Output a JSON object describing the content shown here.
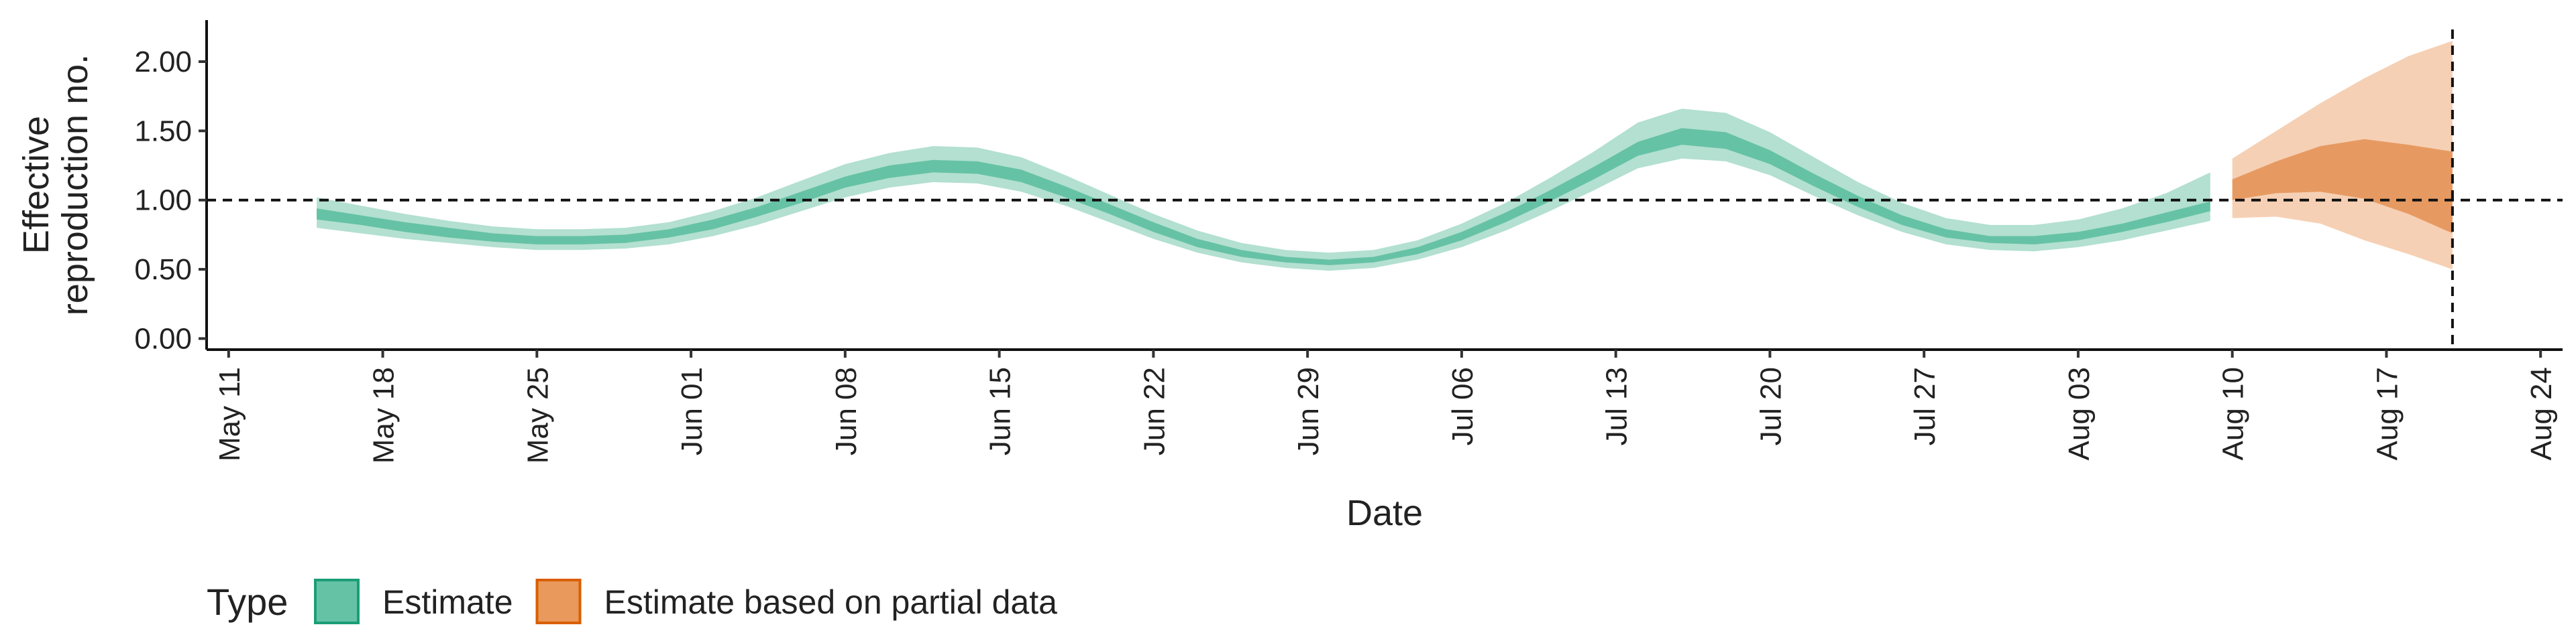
{
  "chart_data": {
    "type": "area",
    "title": "",
    "xlabel": "Date",
    "ylabel": "Effective reproduction no.",
    "ylabel_lines": [
      "Effective",
      "reproduction no."
    ],
    "ylim": [
      -0.08,
      2.3
    ],
    "xlim": [
      "2020-05-10",
      "2020-08-25"
    ],
    "y_ticks": [
      0,
      0.5,
      1,
      1.5,
      2
    ],
    "y_tick_labels": [
      "0.00",
      "0.50",
      "1.00",
      "1.50",
      "2.00"
    ],
    "x_ticks": [
      "2020-05-11",
      "2020-05-18",
      "2020-05-25",
      "2020-06-01",
      "2020-06-08",
      "2020-06-15",
      "2020-06-22",
      "2020-06-29",
      "2020-07-06",
      "2020-07-13",
      "2020-07-20",
      "2020-07-27",
      "2020-08-03",
      "2020-08-10",
      "2020-08-17",
      "2020-08-24"
    ],
    "x_tick_labels": [
      "May 11",
      "May 18",
      "May 25",
      "Jun 01",
      "Jun 08",
      "Jun 15",
      "Jun 22",
      "Jun 29",
      "Jul 06",
      "Jul 13",
      "Jul 20",
      "Jul 27",
      "Aug 03",
      "Aug 10",
      "Aug 17",
      "Aug 24"
    ],
    "reference_line_y": 1,
    "reference_line_x": "2020-08-20",
    "grid": false,
    "legend": {
      "position": "bottom-left",
      "title": "Type",
      "entries": [
        {
          "label": "Estimate",
          "fill": "#66c2a5",
          "stroke": "#1b9e77"
        },
        {
          "label": "Estimate based on partial data",
          "fill": "#e9995c",
          "stroke": "#d95f02"
        }
      ]
    },
    "colors": {
      "estimate_outer": "#b3e0d0",
      "estimate_inner": "#66c2a5",
      "partial_outer": "#f6d0b4",
      "partial_inner": "#e69a62"
    },
    "series": [
      {
        "name": "Estimate",
        "x": [
          "2020-05-15",
          "2020-05-17",
          "2020-05-19",
          "2020-05-21",
          "2020-05-23",
          "2020-05-25",
          "2020-05-27",
          "2020-05-29",
          "2020-05-31",
          "2020-06-02",
          "2020-06-04",
          "2020-06-06",
          "2020-06-08",
          "2020-06-10",
          "2020-06-12",
          "2020-06-14",
          "2020-06-16",
          "2020-06-18",
          "2020-06-20",
          "2020-06-22",
          "2020-06-24",
          "2020-06-26",
          "2020-06-28",
          "2020-06-30",
          "2020-07-02",
          "2020-07-04",
          "2020-07-06",
          "2020-07-08",
          "2020-07-10",
          "2020-07-12",
          "2020-07-14",
          "2020-07-16",
          "2020-07-18",
          "2020-07-20",
          "2020-07-22",
          "2020-07-24",
          "2020-07-26",
          "2020-07-28",
          "2020-07-30",
          "2020-08-01",
          "2020-08-03",
          "2020-08-05",
          "2020-08-07",
          "2020-08-09"
        ],
        "lower_90": [
          0.8,
          0.76,
          0.72,
          0.69,
          0.66,
          0.64,
          0.64,
          0.65,
          0.68,
          0.74,
          0.82,
          0.92,
          1.02,
          1.09,
          1.13,
          1.12,
          1.06,
          0.96,
          0.84,
          0.72,
          0.62,
          0.55,
          0.51,
          0.49,
          0.51,
          0.57,
          0.66,
          0.78,
          0.92,
          1.07,
          1.23,
          1.3,
          1.28,
          1.18,
          1.03,
          0.89,
          0.77,
          0.68,
          0.64,
          0.63,
          0.66,
          0.71,
          0.78,
          0.85
        ],
        "lower_50": [
          0.86,
          0.82,
          0.77,
          0.73,
          0.7,
          0.68,
          0.68,
          0.69,
          0.73,
          0.79,
          0.88,
          0.98,
          1.09,
          1.16,
          1.2,
          1.19,
          1.13,
          1.02,
          0.9,
          0.77,
          0.66,
          0.59,
          0.55,
          0.53,
          0.55,
          0.61,
          0.71,
          0.84,
          0.99,
          1.15,
          1.32,
          1.4,
          1.37,
          1.26,
          1.1,
          0.95,
          0.82,
          0.73,
          0.69,
          0.68,
          0.71,
          0.77,
          0.84,
          0.92
        ],
        "upper_50": [
          0.94,
          0.89,
          0.84,
          0.8,
          0.76,
          0.74,
          0.74,
          0.75,
          0.79,
          0.86,
          0.95,
          1.06,
          1.17,
          1.25,
          1.29,
          1.28,
          1.22,
          1.1,
          0.97,
          0.84,
          0.72,
          0.64,
          0.59,
          0.57,
          0.59,
          0.66,
          0.77,
          0.91,
          1.07,
          1.24,
          1.42,
          1.52,
          1.49,
          1.36,
          1.19,
          1.03,
          0.89,
          0.79,
          0.74,
          0.74,
          0.77,
          0.83,
          0.91,
          0.99
        ],
        "upper_90": [
          1.02,
          0.96,
          0.9,
          0.85,
          0.81,
          0.79,
          0.79,
          0.8,
          0.84,
          0.92,
          1.02,
          1.14,
          1.26,
          1.34,
          1.39,
          1.38,
          1.31,
          1.18,
          1.04,
          0.9,
          0.78,
          0.69,
          0.64,
          0.62,
          0.64,
          0.71,
          0.83,
          0.98,
          1.16,
          1.35,
          1.56,
          1.66,
          1.63,
          1.49,
          1.31,
          1.13,
          0.98,
          0.87,
          0.82,
          0.82,
          0.86,
          0.94,
          1.05,
          1.2
        ]
      },
      {
        "name": "Estimate based on partial data",
        "x": [
          "2020-08-10",
          "2020-08-12",
          "2020-08-14",
          "2020-08-16",
          "2020-08-18",
          "2020-08-20"
        ],
        "lower_90": [
          0.87,
          0.88,
          0.83,
          0.71,
          0.61,
          0.5
        ],
        "lower_50": [
          1.0,
          1.05,
          1.06,
          1.01,
          0.9,
          0.76
        ],
        "upper_50": [
          1.15,
          1.28,
          1.39,
          1.44,
          1.4,
          1.35
        ],
        "upper_90": [
          1.3,
          1.5,
          1.7,
          1.88,
          2.04,
          2.15
        ]
      }
    ]
  }
}
